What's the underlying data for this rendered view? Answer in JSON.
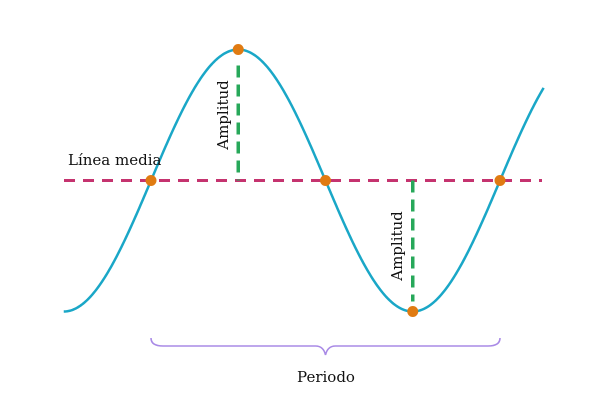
{
  "labels": {
    "midline": "Línea media",
    "amplitude_top": "Amplitud",
    "amplitude_bottom": "Amplitud",
    "period": "Periodo"
  },
  "colors": {
    "curve": "#1aa7c7",
    "midline": "#c5336f",
    "amplitude": "#27a85a",
    "point": "#e07b12",
    "brace": "#a98ae6",
    "text": "#111111"
  },
  "chart_data": {
    "type": "line",
    "function": "y = A·sin(2π(x − x0)/P)",
    "amplitude": 1,
    "period": 1,
    "midline_value": 0,
    "x_range": [
      -0.25,
      1.125
    ],
    "key_points": [
      {
        "x": 0,
        "y": 0,
        "kind": "midline-crossing"
      },
      {
        "x": 0.25,
        "y": 1,
        "kind": "maximum"
      },
      {
        "x": 0.5,
        "y": 0,
        "kind": "midline-crossing"
      },
      {
        "x": 0.75,
        "y": -1,
        "kind": "minimum"
      },
      {
        "x": 1,
        "y": 0,
        "kind": "midline-crossing"
      }
    ]
  }
}
